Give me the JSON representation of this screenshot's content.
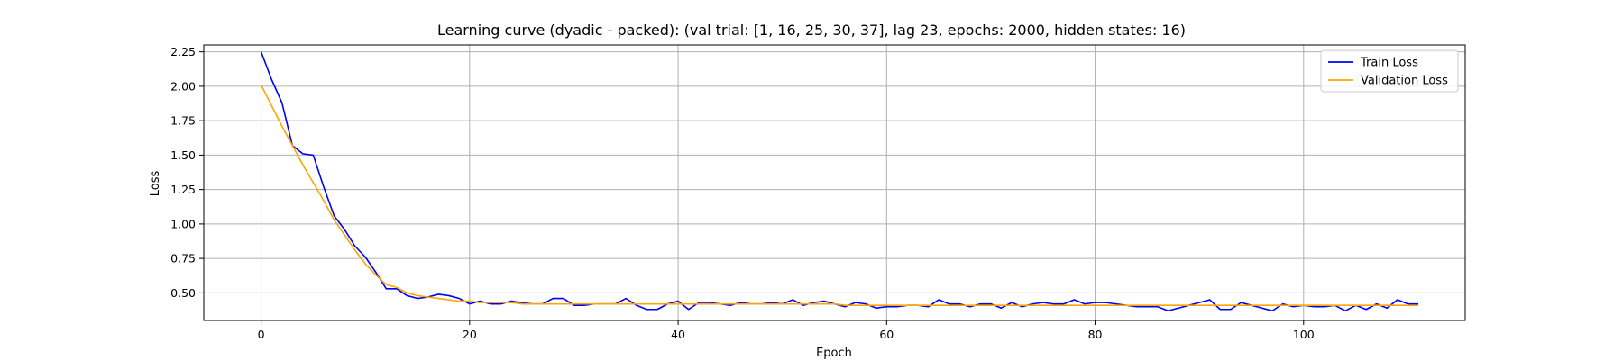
{
  "chart_data": {
    "type": "line",
    "title": "Learning curve (dyadic - packed): (val trial: [1, 16, 25, 30, 37], lag 23, epochs: 2000, hidden states: 16)",
    "xlabel": "Epoch",
    "ylabel": "Loss",
    "xlim": [
      -5.5,
      115.5
    ],
    "ylim": [
      0.3,
      2.3
    ],
    "xticks": [
      0,
      20,
      40,
      60,
      80,
      100
    ],
    "yticks": [
      0.5,
      0.75,
      1.0,
      1.25,
      1.5,
      1.75,
      2.0,
      2.25
    ],
    "ytick_labels": [
      "0.50",
      "0.75",
      "1.00",
      "1.25",
      "1.50",
      "1.75",
      "2.00",
      "2.25"
    ],
    "grid": true,
    "legend_position": "top-right",
    "series": [
      {
        "name": "Train Loss",
        "color": "#0000ff",
        "values": [
          2.25,
          2.05,
          1.88,
          1.57,
          1.51,
          1.5,
          1.27,
          1.06,
          0.96,
          0.84,
          0.76,
          0.65,
          0.53,
          0.53,
          0.48,
          0.46,
          0.47,
          0.49,
          0.48,
          0.46,
          0.42,
          0.44,
          0.42,
          0.42,
          0.44,
          0.43,
          0.42,
          0.42,
          0.46,
          0.46,
          0.41,
          0.41,
          0.42,
          0.42,
          0.42,
          0.46,
          0.41,
          0.38,
          0.38,
          0.42,
          0.44,
          0.38,
          0.43,
          0.43,
          0.42,
          0.41,
          0.43,
          0.42,
          0.42,
          0.43,
          0.42,
          0.45,
          0.41,
          0.43,
          0.44,
          0.42,
          0.4,
          0.43,
          0.42,
          0.39,
          0.4,
          0.4,
          0.41,
          0.41,
          0.4,
          0.45,
          0.42,
          0.42,
          0.4,
          0.42,
          0.42,
          0.39,
          0.43,
          0.4,
          0.42,
          0.43,
          0.42,
          0.42,
          0.45,
          0.42,
          0.43,
          0.43,
          0.42,
          0.41,
          0.4,
          0.4,
          0.4,
          0.37,
          0.39,
          0.41,
          0.43,
          0.45,
          0.38,
          0.38,
          0.43,
          0.41,
          0.39,
          0.37,
          0.42,
          0.4,
          0.41,
          0.4,
          0.4,
          0.41,
          0.37,
          0.41,
          0.38,
          0.42,
          0.39,
          0.45,
          0.42,
          0.42
        ]
      },
      {
        "name": "Validation Loss",
        "color": "#ffa500",
        "values": [
          2.01,
          1.86,
          1.71,
          1.57,
          1.43,
          1.3,
          1.17,
          1.03,
          0.92,
          0.81,
          0.71,
          0.63,
          0.56,
          0.54,
          0.5,
          0.48,
          0.47,
          0.46,
          0.45,
          0.44,
          0.44,
          0.43,
          0.43,
          0.43,
          0.43,
          0.42,
          0.42,
          0.42,
          0.42,
          0.42,
          0.42,
          0.42,
          0.42,
          0.42,
          0.42,
          0.42,
          0.42,
          0.42,
          0.42,
          0.42,
          0.42,
          0.42,
          0.42,
          0.42,
          0.42,
          0.42,
          0.42,
          0.42,
          0.42,
          0.42,
          0.42,
          0.42,
          0.42,
          0.42,
          0.42,
          0.42,
          0.41,
          0.41,
          0.41,
          0.41,
          0.41,
          0.41,
          0.41,
          0.41,
          0.41,
          0.41,
          0.41,
          0.41,
          0.41,
          0.41,
          0.41,
          0.41,
          0.41,
          0.41,
          0.41,
          0.41,
          0.41,
          0.41,
          0.41,
          0.41,
          0.41,
          0.41,
          0.41,
          0.41,
          0.41,
          0.41,
          0.41,
          0.41,
          0.41,
          0.41,
          0.41,
          0.41,
          0.41,
          0.41,
          0.41,
          0.41,
          0.41,
          0.41,
          0.41,
          0.41,
          0.41,
          0.41,
          0.41,
          0.41,
          0.41,
          0.41,
          0.41,
          0.41,
          0.41,
          0.41,
          0.41,
          0.41
        ]
      }
    ]
  }
}
